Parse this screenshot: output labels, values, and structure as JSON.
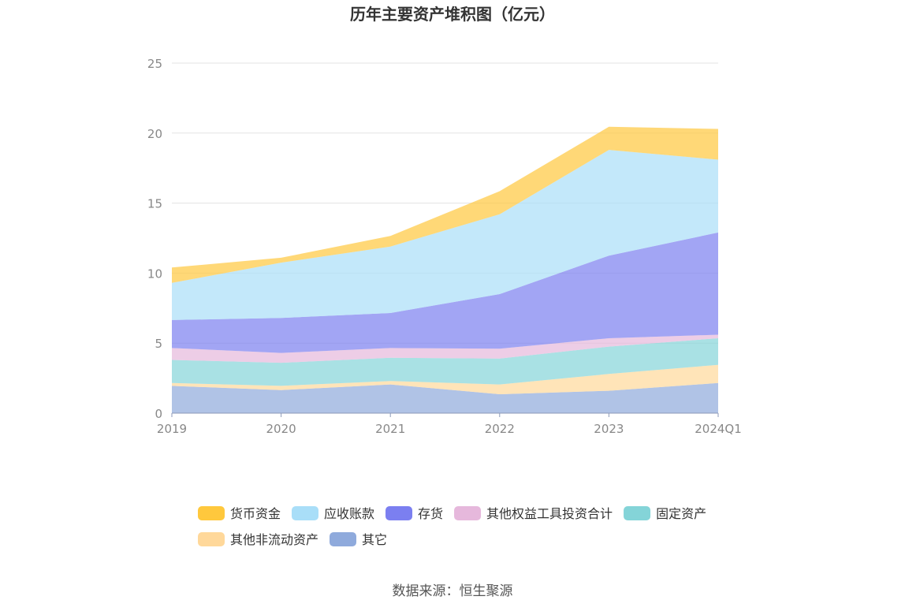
{
  "chart_data": {
    "type": "area",
    "stacked": true,
    "title": "历年主要资产堆积图（亿元）",
    "source": "数据来源：恒生聚源",
    "categories": [
      "2019",
      "2020",
      "2021",
      "2022",
      "2023",
      "2024Q1"
    ],
    "ylim": [
      0,
      25
    ],
    "yticks": [
      "0",
      "5",
      "10",
      "15",
      "20",
      "25"
    ],
    "grid": true,
    "legend_position": "bottom",
    "series": [
      {
        "name": "其它",
        "color": "#8faadc",
        "values": [
          1.95,
          1.65,
          2.05,
          1.35,
          1.6,
          2.15
        ]
      },
      {
        "name": "其他非流动资产",
        "color": "#ffd89a",
        "values": [
          0.2,
          0.3,
          0.25,
          0.7,
          1.2,
          1.3
        ]
      },
      {
        "name": "固定资产",
        "color": "#84d4d8",
        "values": [
          1.65,
          1.65,
          1.65,
          1.85,
          1.95,
          1.9
        ]
      },
      {
        "name": "其他权益工具投资合计",
        "color": "#e6b8dc",
        "values": [
          0.85,
          0.7,
          0.7,
          0.7,
          0.6,
          0.25
        ]
      },
      {
        "name": "存货",
        "color": "#7b7ff0",
        "values": [
          2.0,
          2.5,
          2.5,
          3.9,
          5.9,
          7.3
        ]
      },
      {
        "name": "应收账款",
        "color": "#a9def8",
        "values": [
          2.65,
          3.95,
          4.75,
          5.7,
          7.55,
          5.2
        ]
      },
      {
        "name": "货币资金",
        "color": "#ffc83d",
        "values": [
          1.1,
          0.35,
          0.75,
          1.65,
          1.65,
          2.2
        ]
      }
    ],
    "legend_order": [
      "货币资金",
      "应收账款",
      "存货",
      "其他权益工具投资合计",
      "固定资产",
      "其他非流动资产",
      "其它"
    ]
  }
}
